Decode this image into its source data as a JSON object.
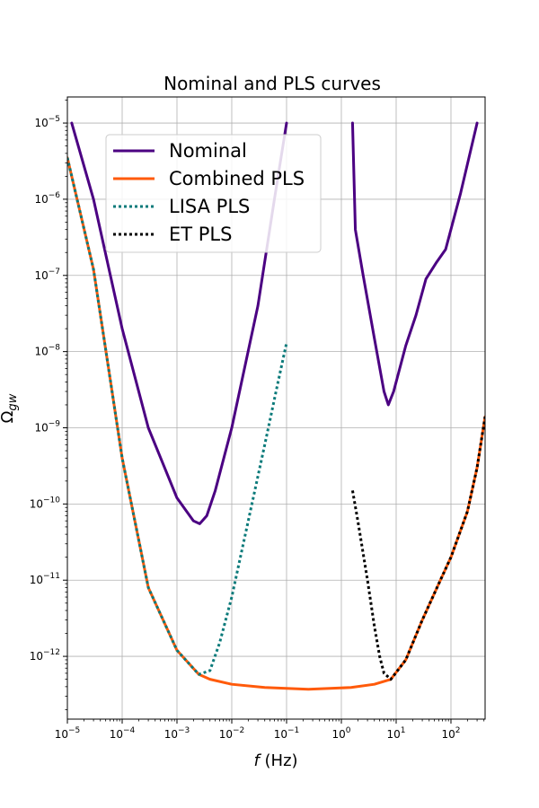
{
  "chart_data": {
    "type": "line",
    "title": "Nominal and PLS curves",
    "xlabel": {
      "italic": "f",
      "rest": " (Hz)"
    },
    "ylabel": {
      "main": "Ω",
      "sub": "gw"
    },
    "xscale": "log",
    "yscale": "log",
    "xlim": [
      1e-05,
      420
    ],
    "ylim": [
      1.5e-13,
      2.2e-05
    ],
    "grid": true,
    "legend_position": "upper-left",
    "x_ticks": [
      {
        "value": 1e-05,
        "base": "10",
        "exp": "−5"
      },
      {
        "value": 0.0001,
        "base": "10",
        "exp": "−4"
      },
      {
        "value": 0.001,
        "base": "10",
        "exp": "−3"
      },
      {
        "value": 0.01,
        "base": "10",
        "exp": "−2"
      },
      {
        "value": 0.1,
        "base": "10",
        "exp": "−1"
      },
      {
        "value": 1,
        "base": "10",
        "exp": "0"
      },
      {
        "value": 10,
        "base": "10",
        "exp": "1"
      },
      {
        "value": 100,
        "base": "10",
        "exp": "2"
      }
    ],
    "y_ticks": [
      {
        "value": 1e-12,
        "base": "10",
        "exp": "−12"
      },
      {
        "value": 1e-11,
        "base": "10",
        "exp": "−11"
      },
      {
        "value": 1e-10,
        "base": "10",
        "exp": "−10"
      },
      {
        "value": 1e-09,
        "base": "10",
        "exp": "−9"
      },
      {
        "value": 1e-08,
        "base": "10",
        "exp": "−8"
      },
      {
        "value": 1e-07,
        "base": "10",
        "exp": "−7"
      },
      {
        "value": 1e-06,
        "base": "10",
        "exp": "−6"
      },
      {
        "value": 1e-05,
        "base": "10",
        "exp": "−5"
      }
    ],
    "series": [
      {
        "name": "Nominal",
        "color": "#4b0082",
        "style": "solid",
        "segments": [
          [
            [
              1.2e-05,
              1e-05
            ],
            [
              3e-05,
              1e-06
            ],
            [
              0.0001,
              2e-08
            ],
            [
              0.0003,
              1e-09
            ],
            [
              0.001,
              1.2e-10
            ],
            [
              0.002,
              6e-11
            ],
            [
              0.0026,
              5.5e-11
            ],
            [
              0.0035,
              7e-11
            ],
            [
              0.005,
              1.5e-10
            ],
            [
              0.01,
              1e-09
            ],
            [
              0.03,
              4e-08
            ],
            [
              0.06,
              1e-06
            ],
            [
              0.1,
              1e-05
            ]
          ],
          [
            [
              1.6,
              1e-05
            ],
            [
              1.8,
              4e-07
            ],
            [
              2.5,
              1e-07
            ],
            [
              4,
              1.5e-08
            ],
            [
              6,
              3e-09
            ],
            [
              7.2,
              2e-09
            ],
            [
              9,
              3e-09
            ],
            [
              15,
              1.2e-08
            ],
            [
              23,
              3e-08
            ],
            [
              35,
              9e-08
            ],
            [
              55,
              1.5e-07
            ],
            [
              80,
              2.2e-07
            ],
            [
              150,
              1.2e-06
            ],
            [
              300,
              1e-05
            ]
          ]
        ]
      },
      {
        "name": "Combined PLS",
        "color": "#ff5a0a",
        "style": "solid",
        "segments": [
          [
            [
              1e-05,
              3.5e-06
            ],
            [
              3e-05,
              1.2e-07
            ],
            [
              0.0001,
              4e-10
            ],
            [
              0.0003,
              8e-12
            ],
            [
              0.001,
              1.2e-12
            ],
            [
              0.0025,
              5.8e-13
            ],
            [
              0.004,
              5e-13
            ],
            [
              0.01,
              4.3e-13
            ],
            [
              0.04,
              3.9e-13
            ],
            [
              0.25,
              3.7e-13
            ],
            [
              1.5,
              3.9e-13
            ],
            [
              4,
              4.3e-13
            ],
            [
              8,
              5e-13
            ],
            [
              15,
              9e-13
            ],
            [
              30,
              3e-12
            ],
            [
              60,
              9e-12
            ],
            [
              100,
              2e-11
            ],
            [
              200,
              8e-11
            ],
            [
              300,
              3e-10
            ],
            [
              420,
              1.4e-09
            ]
          ]
        ]
      },
      {
        "name": "LISA PLS",
        "color": "#0a7a7a",
        "style": "dotted",
        "segments": [
          [
            [
              1e-05,
              3.5e-06
            ],
            [
              3e-05,
              1.2e-07
            ],
            [
              0.0001,
              4e-10
            ],
            [
              0.0003,
              8e-12
            ],
            [
              0.001,
              1.2e-12
            ],
            [
              0.0025,
              5.8e-13
            ],
            [
              0.004,
              6.5e-13
            ],
            [
              0.006,
              1.5e-12
            ],
            [
              0.01,
              6e-12
            ],
            [
              0.02,
              6e-11
            ],
            [
              0.04,
              6e-10
            ],
            [
              0.07,
              4e-09
            ],
            [
              0.1,
              1.3e-08
            ]
          ]
        ]
      },
      {
        "name": "ET PLS",
        "color": "#000000",
        "style": "dotted",
        "segments": [
          [
            [
              1.6,
              1.5e-10
            ],
            [
              2,
              6e-11
            ],
            [
              3,
              1e-11
            ],
            [
              4,
              2.5e-12
            ],
            [
              5,
              1e-12
            ],
            [
              6,
              6e-13
            ],
            [
              8,
              5e-13
            ],
            [
              15,
              9e-13
            ],
            [
              30,
              3e-12
            ],
            [
              60,
              9e-12
            ],
            [
              100,
              2e-11
            ],
            [
              200,
              8e-11
            ],
            [
              300,
              3e-10
            ],
            [
              420,
              1.4e-09
            ]
          ]
        ]
      }
    ]
  }
}
